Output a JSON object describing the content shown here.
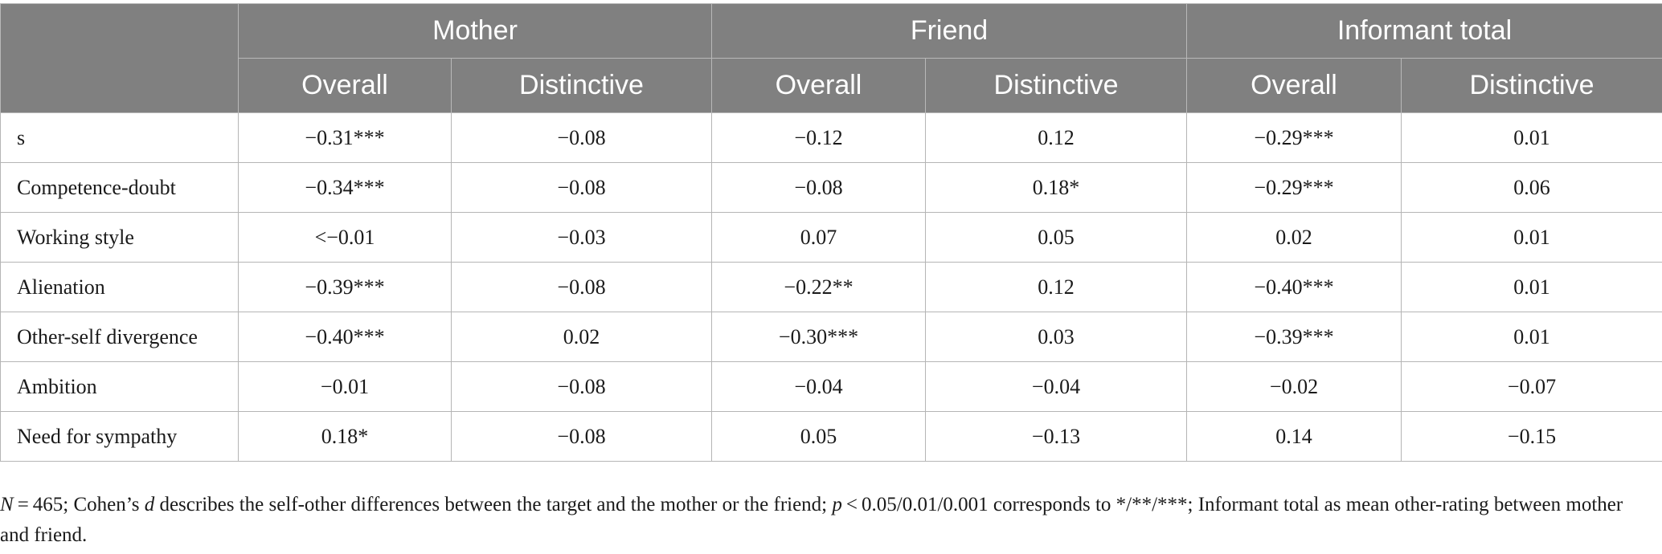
{
  "table": {
    "groups": [
      {
        "label": "Mother"
      },
      {
        "label": "Friend"
      },
      {
        "label": "Informant total"
      }
    ],
    "subheaders": [
      "Overall",
      "Distinctive",
      "Overall",
      "Distinctive",
      "Overall",
      "Distinctive"
    ],
    "rows": [
      {
        "label": "s",
        "cells": [
          "−0.31***",
          "−0.08",
          "−0.12",
          "0.12",
          "−0.29***",
          "0.01"
        ]
      },
      {
        "label": "Competence-doubt",
        "cells": [
          "−0.34***",
          "−0.08",
          "−0.08",
          "0.18*",
          "−0.29***",
          "0.06"
        ]
      },
      {
        "label": "Working style",
        "cells": [
          "<−0.01",
          "−0.03",
          "0.07",
          "0.05",
          "0.02",
          "0.01"
        ]
      },
      {
        "label": "Alienation",
        "cells": [
          "−0.39***",
          "−0.08",
          "−0.22**",
          "0.12",
          "−0.40***",
          "0.01"
        ]
      },
      {
        "label": "Other-self divergence",
        "cells": [
          "−0.40***",
          "0.02",
          "−0.30***",
          "0.03",
          "−0.39***",
          "0.01"
        ]
      },
      {
        "label": "Ambition",
        "cells": [
          "−0.01",
          "−0.08",
          "−0.04",
          "−0.04",
          "−0.02",
          "−0.07"
        ]
      },
      {
        "label": "Need for sympathy",
        "cells": [
          "0.18*",
          "−0.08",
          "0.05",
          "−0.13",
          "0.14",
          "−0.15"
        ]
      }
    ]
  },
  "footnote": {
    "n_symbol": "N",
    "n_value": " = 465; Cohen’s ",
    "d_symbol": "d",
    "middle": " describes the self-other differences between the target and the mother or the friend; ",
    "p_symbol": "p",
    "rest": " < 0.05/0.01/0.001 corresponds to */**/***; Informant total as mean other-rating between mother and friend."
  }
}
